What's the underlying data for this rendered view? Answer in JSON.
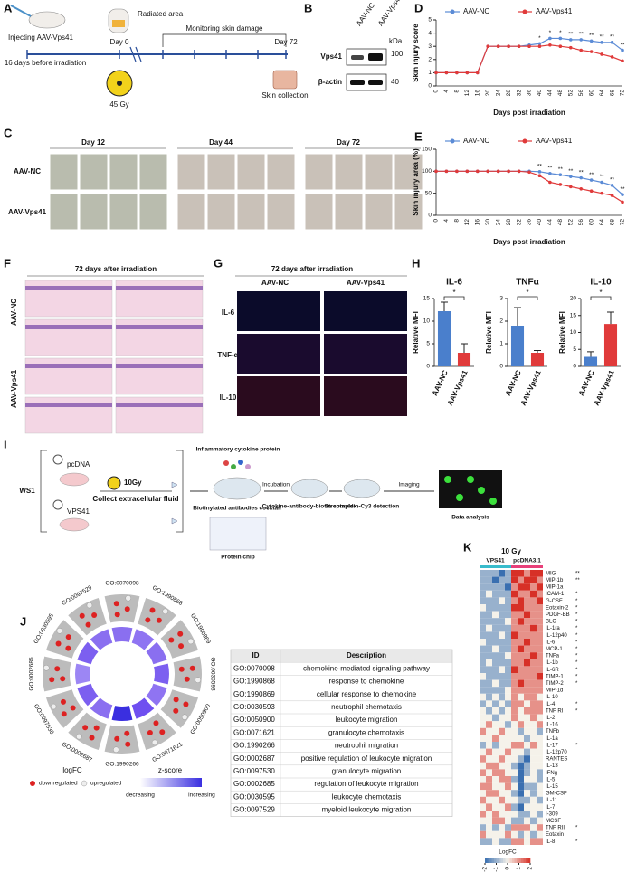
{
  "panel_labels": [
    "A",
    "B",
    "C",
    "D",
    "E",
    "F",
    "G",
    "H",
    "I",
    "J",
    "K"
  ],
  "panel_a": {
    "injecting": "Injecting AAV-Vps41",
    "before": "16 days before irradiation",
    "radiated": "Radiated area",
    "day0": "Day 0",
    "monitoring": "Monitoring skin damage",
    "day72": "Day 72",
    "dose": "45 Gy",
    "collection": "Skin collection"
  },
  "panel_b": {
    "lanes": [
      "AAV-NC",
      "AAV-Vps41"
    ],
    "kda": "kDa",
    "proteins": [
      "Vps41",
      "β-actin"
    ],
    "markers": [
      "100",
      "40"
    ]
  },
  "panel_c": {
    "days": [
      "Day 12",
      "Day 44",
      "Day 72"
    ],
    "groups": [
      "AAV-NC",
      "AAV-Vps41"
    ]
  },
  "panel_f": {
    "title": "72 days after irradiation",
    "groups": [
      "AAV-NC",
      "AAV-Vps41"
    ]
  },
  "panel_g": {
    "title": "72 days after irradiation",
    "groups": [
      "AAV-NC",
      "AAV-Vps41"
    ],
    "markers": [
      "IL-6",
      "TNF-α",
      "IL-10"
    ]
  },
  "panel_i": {
    "cell": "WS1",
    "plasmids": [
      "pcDNA",
      "VPS41"
    ],
    "dose": "10Gy",
    "collect": "Collect extracellular fluid",
    "cytokine": "Inflammatory cytokine protein",
    "antibodies": "Biotinylated antibodies cocktail",
    "incubation": "Incubation",
    "complex": "Cytokine-antibody-biotin complex",
    "detection": "Streptavidin-Cy3 detection",
    "imaging": "Imaging",
    "analysis": "Data analysis",
    "chip": "Protein chip"
  },
  "panel_j": {
    "table": {
      "header": [
        "ID",
        "Description"
      ],
      "rows": [
        [
          "GO:0070098",
          "chemokine-mediated signaling pathway"
        ],
        [
          "GO:1990868",
          "response to chemokine"
        ],
        [
          "GO:1990869",
          "cellular response to chemokine"
        ],
        [
          "GO:0030593",
          "neutrophil chemotaxis"
        ],
        [
          "GO:0050900",
          "leukocyte migration"
        ],
        [
          "GO:0071621",
          "granulocyte chemotaxis"
        ],
        [
          "GO:1990266",
          "neutrophil migration"
        ],
        [
          "GO:0002687",
          "positive regulation of leukocyte migration"
        ],
        [
          "GO:0097530",
          "granulocyte migration"
        ],
        [
          "GO:0002685",
          "regulation of leukocyte migration"
        ],
        [
          "GO:0030595",
          "leukocyte chemotaxis"
        ],
        [
          "GO:0097529",
          "myeloid leukocyte migration"
        ]
      ]
    },
    "bar_colors": [
      "#8a6ff0",
      "#8f74f2",
      "#8a6ff0",
      "#7c5ff0",
      "#8f74f2",
      "#6f4ff0",
      "#3a2fe0",
      "#8a6ff0",
      "#7c5ff0",
      "#9c86f4",
      "#7c5ff0",
      "#8a6ff0"
    ],
    "legend": {
      "logfc": "logFC",
      "down": "downregulated",
      "up": "upregulated",
      "zscore": "z-score",
      "decreasing": "decreasing",
      "increasing": "increasing"
    }
  },
  "chart_data": [
    {
      "type": "line",
      "y_label": "Skin injury score",
      "x_label": "Days post irradiation",
      "categories": [
        "0",
        "4",
        "8",
        "12",
        "16",
        "20",
        "24",
        "28",
        "32",
        "36",
        "40",
        "44",
        "48",
        "52",
        "56",
        "60",
        "64",
        "68",
        "72"
      ],
      "series": [
        {
          "name": "AAV-NC",
          "color": "#5b8bd6",
          "values": [
            1,
            1,
            1,
            1,
            1,
            3,
            3,
            3,
            3,
            3.1,
            3.2,
            3.6,
            3.6,
            3.5,
            3.5,
            3.4,
            3.3,
            3.3,
            2.7
          ]
        },
        {
          "name": "AAV-Vps41",
          "color": "#e03a3a",
          "values": [
            1,
            1,
            1,
            1,
            1,
            3,
            3,
            3,
            3,
            3,
            3,
            3.1,
            3,
            2.9,
            2.7,
            2.6,
            2.4,
            2.2,
            1.9
          ]
        }
      ],
      "significance": [
        null,
        null,
        null,
        null,
        null,
        null,
        null,
        null,
        null,
        null,
        "*",
        "*",
        "*",
        "**",
        "**",
        "**",
        "**",
        "**",
        "**"
      ],
      "ylim": [
        0,
        5
      ],
      "yticks": [
        0,
        1,
        2,
        3,
        4,
        5
      ],
      "legend": "top"
    },
    {
      "type": "line",
      "y_label": "Skin injury area (%)",
      "x_label": "Days post irradiation",
      "categories": [
        "0",
        "4",
        "8",
        "12",
        "16",
        "20",
        "24",
        "28",
        "32",
        "36",
        "40",
        "44",
        "48",
        "52",
        "56",
        "60",
        "64",
        "68",
        "72"
      ],
      "series": [
        {
          "name": "AAV-NC",
          "color": "#5b8bd6",
          "values": [
            100,
            100,
            100,
            100,
            100,
            100,
            100,
            100,
            100,
            100,
            99,
            95,
            92,
            88,
            85,
            80,
            75,
            68,
            47
          ]
        },
        {
          "name": "AAV-Vps41",
          "color": "#e03a3a",
          "values": [
            100,
            100,
            100,
            100,
            100,
            100,
            100,
            100,
            100,
            98,
            90,
            75,
            70,
            65,
            60,
            55,
            50,
            45,
            30
          ]
        }
      ],
      "significance": [
        null,
        null,
        null,
        null,
        null,
        null,
        null,
        null,
        null,
        null,
        "**",
        "**",
        "**",
        "**",
        "**",
        "**",
        "**",
        "**",
        "**"
      ],
      "ylim": [
        0,
        150
      ],
      "yticks": [
        0,
        50,
        100,
        150
      ],
      "legend": "top"
    },
    {
      "type": "bar",
      "title": "IL-6",
      "y_label": "Relative MFI",
      "categories": [
        "AAV-NC",
        "AAV-Vps41"
      ],
      "values": [
        12.2,
        3
      ],
      "errors": [
        2,
        2
      ],
      "colors": [
        "#4a7fcc",
        "#e03a3a"
      ],
      "annotation": "*",
      "ylim": [
        0,
        15
      ],
      "yticks": [
        0,
        5,
        10,
        15
      ]
    },
    {
      "type": "bar",
      "title": "TNFα",
      "y_label": "Relative MFI",
      "categories": [
        "AAV-NC",
        "AAV-Vps41"
      ],
      "values": [
        1.8,
        0.6
      ],
      "errors": [
        0.8,
        0.1
      ],
      "colors": [
        "#4a7fcc",
        "#e03a3a"
      ],
      "annotation": "*",
      "ylim": [
        0,
        3
      ],
      "yticks": [
        0,
        1,
        2,
        3
      ]
    },
    {
      "type": "bar",
      "title": "IL-10",
      "y_label": "Relative MFI",
      "categories": [
        "AAV-NC",
        "AAV-Vps41"
      ],
      "values": [
        2.8,
        12.5
      ],
      "errors": [
        1.5,
        3.5
      ],
      "colors": [
        "#4a7fcc",
        "#e03a3a"
      ],
      "annotation": "*",
      "ylim": [
        0,
        20
      ],
      "yticks": [
        0,
        5,
        10,
        15,
        20
      ]
    },
    {
      "type": "heatmap",
      "title": "10 Gy",
      "groups": [
        "VPS41",
        "pcDNA3.1"
      ],
      "group_size": 5,
      "legend_title": "LogFC",
      "rows": [
        "MIG",
        "MIP-1b",
        "MIP-1a",
        "ICAM-1",
        "G-CSF",
        "Eotaxin-2",
        "PDGF-BB",
        "BLC",
        "IL-1ra",
        "IL-12p40",
        "IL-6",
        "MCP-1",
        "TNFa",
        "IL-1b",
        "IL-6R",
        "TIMP-1",
        "TIMP-2",
        "MIP-1d",
        "IL-10",
        "IL-4",
        "TNF RI",
        "IL-2",
        "IL-16",
        "TNFb",
        "IL-1a",
        "IL-17",
        "IL-12p70",
        "RANTES",
        "IL-13",
        "IFNg",
        "IL-5",
        "IL-15",
        "GM-CSF",
        "IL-11",
        "IL-7",
        "I-309",
        "MCSF",
        "TNF RII",
        "Eotaxin",
        "IL-8"
      ],
      "significance": [
        "**",
        "**",
        null,
        "*",
        "*",
        "*",
        "*",
        "*",
        "*",
        "*",
        "*",
        "*",
        "*",
        "*",
        "*",
        "*",
        "*",
        null,
        null,
        "*",
        "*",
        null,
        null,
        null,
        null,
        "*",
        null,
        null,
        null,
        null,
        null,
        null,
        null,
        null,
        null,
        null,
        null,
        "*",
        null,
        "*"
      ],
      "values": [
        [
          -1,
          -1,
          -1,
          -2,
          -1,
          2,
          2,
          1,
          2,
          2
        ],
        [
          -1,
          -1,
          -2,
          -1,
          -1,
          2,
          1,
          2,
          2,
          1
        ],
        [
          -1,
          -1,
          -1,
          -1,
          -2,
          1,
          2,
          2,
          1,
          2
        ],
        [
          -1,
          0,
          -1,
          -1,
          -1,
          2,
          1,
          1,
          2,
          1
        ],
        [
          -1,
          -1,
          -1,
          0,
          -1,
          1,
          2,
          1,
          1,
          2
        ],
        [
          0,
          -1,
          -1,
          -1,
          -1,
          2,
          2,
          1,
          1,
          1
        ],
        [
          -1,
          -1,
          0,
          -1,
          -1,
          1,
          1,
          2,
          1,
          1
        ],
        [
          -1,
          -1,
          -1,
          -1,
          0,
          1,
          2,
          1,
          1,
          1
        ],
        [
          -1,
          0,
          -1,
          -1,
          -1,
          1,
          1,
          1,
          2,
          1
        ],
        [
          -1,
          -1,
          -1,
          0,
          -1,
          2,
          1,
          1,
          1,
          1
        ],
        [
          0,
          -1,
          -1,
          -1,
          -1,
          1,
          1,
          2,
          1,
          1
        ],
        [
          -1,
          -1,
          0,
          -1,
          -1,
          1,
          2,
          1,
          1,
          1
        ],
        [
          -1,
          -1,
          -1,
          -1,
          0,
          1,
          1,
          1,
          2,
          1
        ],
        [
          -1,
          0,
          -1,
          -1,
          -1,
          1,
          1,
          2,
          1,
          1
        ],
        [
          -1,
          -1,
          -1,
          0,
          -1,
          2,
          1,
          1,
          1,
          1
        ],
        [
          0,
          -1,
          -1,
          -1,
          -1,
          1,
          1,
          1,
          1,
          2
        ],
        [
          -1,
          -1,
          0,
          -1,
          -1,
          1,
          2,
          1,
          1,
          1
        ],
        [
          -1,
          -1,
          -1,
          -1,
          0,
          1,
          1,
          1,
          1,
          1
        ],
        [
          0,
          -1,
          0,
          -1,
          0,
          1,
          0,
          1,
          1,
          0
        ],
        [
          -1,
          0,
          -1,
          0,
          -1,
          1,
          1,
          0,
          1,
          1
        ],
        [
          0,
          -1,
          0,
          -1,
          0,
          1,
          0,
          1,
          1,
          1
        ],
        [
          0,
          0,
          -1,
          0,
          0,
          1,
          0,
          0,
          1,
          0
        ],
        [
          0,
          1,
          0,
          0,
          -1,
          0,
          1,
          0,
          0,
          1
        ],
        [
          1,
          0,
          0,
          1,
          0,
          0,
          -1,
          0,
          0,
          -1
        ],
        [
          0,
          0,
          1,
          0,
          0,
          0,
          0,
          -1,
          0,
          0
        ],
        [
          -1,
          0,
          -1,
          0,
          0,
          1,
          1,
          0,
          1,
          0
        ],
        [
          0,
          1,
          0,
          0,
          1,
          0,
          0,
          -1,
          0,
          0
        ],
        [
          1,
          0,
          0,
          1,
          0,
          0,
          -1,
          -2,
          0,
          0
        ],
        [
          0,
          1,
          1,
          0,
          0,
          -1,
          -2,
          -1,
          0,
          0
        ],
        [
          1,
          0,
          1,
          1,
          0,
          0,
          -2,
          -1,
          0,
          -1
        ],
        [
          0,
          1,
          0,
          1,
          1,
          -1,
          -2,
          0,
          0,
          -1
        ],
        [
          1,
          1,
          0,
          0,
          1,
          0,
          -2,
          -1,
          -1,
          0
        ],
        [
          0,
          1,
          1,
          0,
          0,
          -1,
          -2,
          0,
          -1,
          0
        ],
        [
          1,
          0,
          0,
          1,
          0,
          0,
          -1,
          -1,
          0,
          -1
        ],
        [
          0,
          1,
          0,
          0,
          1,
          -1,
          -2,
          0,
          0,
          0
        ],
        [
          1,
          0,
          1,
          0,
          0,
          0,
          -1,
          -1,
          0,
          -1
        ],
        [
          0,
          0,
          1,
          1,
          0,
          -1,
          -1,
          0,
          -1,
          0
        ],
        [
          -1,
          0,
          -1,
          0,
          -1,
          1,
          1,
          1,
          0,
          1
        ],
        [
          1,
          0,
          0,
          0,
          1,
          0,
          -1,
          0,
          -1,
          0
        ],
        [
          -1,
          -1,
          0,
          -1,
          -1,
          1,
          1,
          0,
          1,
          1
        ]
      ],
      "colors": [
        "#3a6fb0",
        "#f5f2ea",
        "#d73027"
      ],
      "zlim": [
        -2,
        2
      ],
      "zticks": [
        -2,
        -1,
        0,
        1,
        2
      ]
    }
  ]
}
